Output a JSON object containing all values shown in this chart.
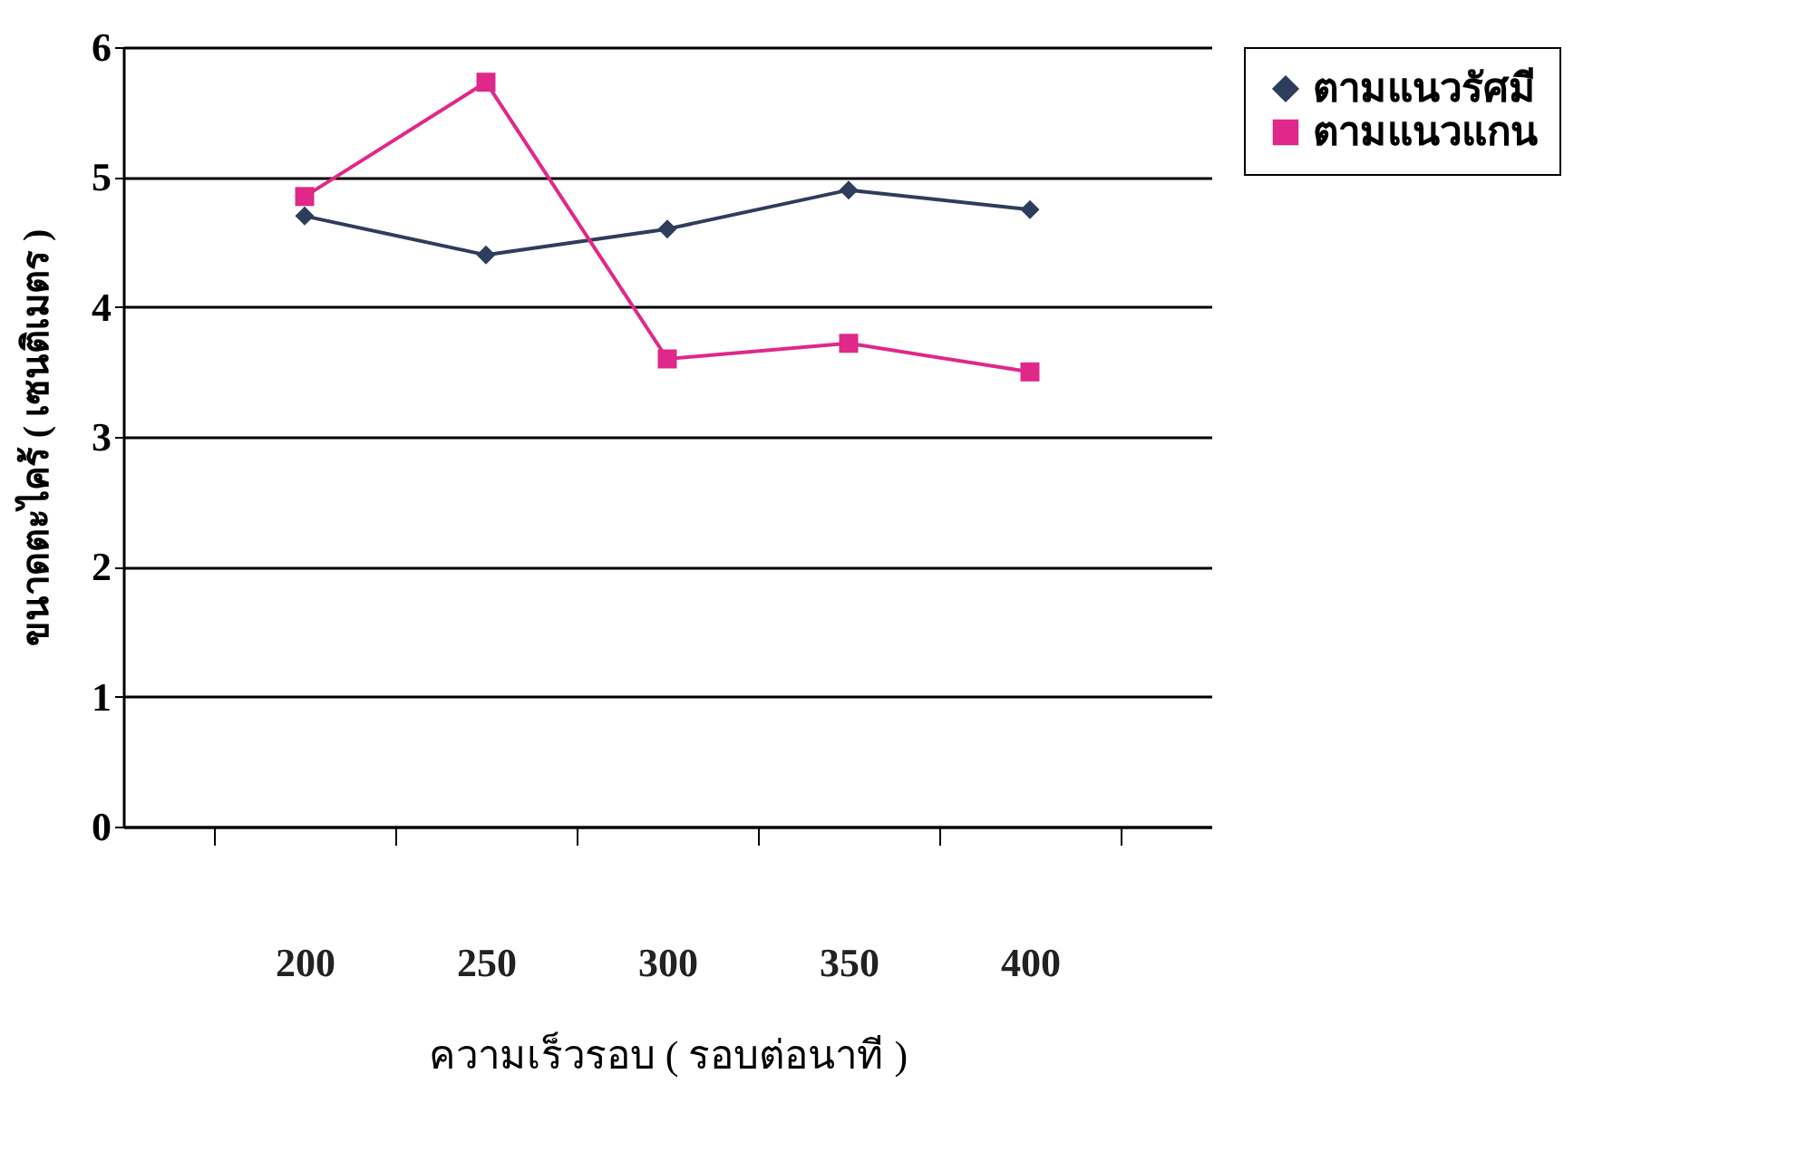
{
  "chart_data": {
    "type": "line",
    "xlabel": "ความเร็วรอบ ( รอบต่อนาที )",
    "ylabel": "ขนาดตะไคร้ ( เซนติเมตร )",
    "categories": [
      "200",
      "250",
      "300",
      "350",
      "400"
    ],
    "series": [
      {
        "name": "ตามแนวรัศมี",
        "color": "#2f3d5c",
        "marker": "diamond",
        "values": [
          4.7,
          4.4,
          4.6,
          4.9,
          4.75
        ]
      },
      {
        "name": "ตามแนวแกน",
        "color": "#e0288a",
        "marker": "square",
        "values": [
          4.85,
          5.73,
          3.6,
          3.72,
          3.5
        ]
      }
    ],
    "ylim": [
      0,
      6
    ],
    "yticks": [
      0,
      1,
      2,
      3,
      4,
      5,
      6
    ],
    "grid": "y",
    "legend": "right"
  }
}
